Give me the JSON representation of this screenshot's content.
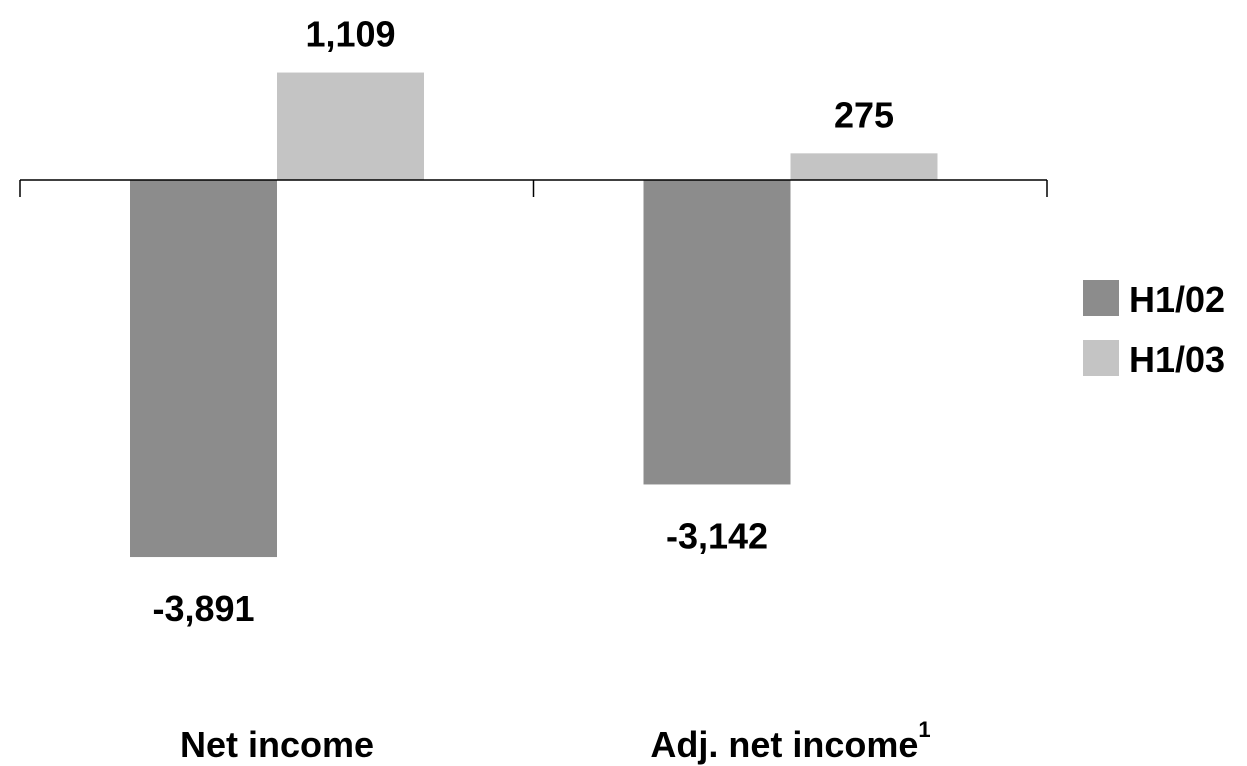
{
  "chart_data": {
    "type": "bar",
    "categories": [
      "Net income",
      "Adj. net income"
    ],
    "category_footnotes": [
      "",
      "1"
    ],
    "series": [
      {
        "name": "H1/02",
        "values": [
          -3891,
          -3142
        ],
        "labels": [
          "-3,891",
          "-3,142"
        ],
        "color": "#8c8c8c"
      },
      {
        "name": "H1/03",
        "values": [
          1109,
          275
        ],
        "labels": [
          "1,109",
          "275"
        ],
        "color": "#c4c4c4"
      }
    ],
    "legend_position": "right",
    "grid": false
  }
}
